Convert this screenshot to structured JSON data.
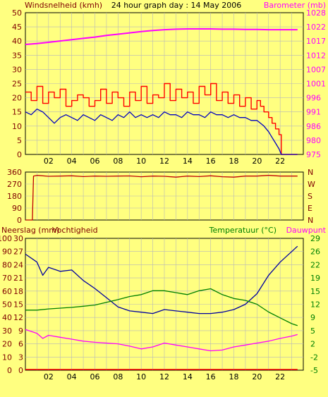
{
  "header": {
    "left_label": "Windsnelheid (kmh)",
    "center_title": "24 hour graph day : 14 May 2006",
    "right_label": "Barometer (mb)"
  },
  "colors": {
    "background": "#ffff80",
    "plot_background": "#ffff80",
    "grid": "#b8b8b8",
    "axis": "#000000",
    "gust": "#ff0000",
    "wind": "#0000c0",
    "barometer": "#ff00ff",
    "direction": "#c00000",
    "humidity": "#0000a0",
    "temperature": "#008000",
    "dewpoint": "#ff00ff",
    "rain": "#ff0000",
    "left_label_color": "#800000",
    "right_label_color": "#ff00ff",
    "temp_label_color": "#008000"
  },
  "chart_data": [
    {
      "id": "wind-pressure",
      "type": "line",
      "left_axis_label": "Windsnelheid (kmh)",
      "right_axis_label": "Barometer (mb)",
      "x_ticks": [
        "02",
        "04",
        "06",
        "08",
        "10",
        "12",
        "14",
        "16",
        "18",
        "20",
        "22"
      ],
      "xlim": [
        0,
        24
      ],
      "left_ylim": [
        0,
        50
      ],
      "left_ticks": [
        "0",
        "5",
        "10",
        "15",
        "20",
        "25",
        "30",
        "35",
        "40",
        "45",
        "50"
      ],
      "right_ylim": [
        975,
        1029.1
      ],
      "right_ticks": [
        "975",
        "980",
        "986",
        "991",
        "996",
        "1001",
        "1007",
        "1012",
        "1017",
        "1022",
        "1028"
      ],
      "grid": true,
      "series": [
        {
          "key": "gust",
          "axis": "left",
          "step": true,
          "x": [
            0,
            0.5,
            1,
            1.5,
            2,
            2.5,
            3,
            3.5,
            4,
            4.5,
            5,
            5.5,
            6,
            6.5,
            7,
            7.5,
            8,
            8.5,
            9,
            9.5,
            10,
            10.5,
            11,
            11.5,
            12,
            12.5,
            13,
            13.5,
            14,
            14.5,
            15,
            15.5,
            16,
            16.5,
            17,
            17.5,
            18,
            18.5,
            19,
            19.5,
            20,
            20.3,
            20.6,
            21,
            21.3,
            21.6,
            21.9,
            22.1,
            22.4,
            23,
            23.5
          ],
          "y": [
            22,
            19,
            24,
            18,
            22,
            20,
            23,
            17,
            19,
            21,
            20,
            17,
            19,
            23,
            18,
            22,
            20,
            17,
            22,
            19,
            24,
            18,
            21,
            20,
            25,
            19,
            23,
            20,
            22,
            18,
            24,
            21,
            25,
            19,
            22,
            18,
            21,
            17,
            20,
            16,
            19,
            17,
            15,
            13,
            11,
            9,
            7,
            0,
            0,
            0,
            0
          ]
        },
        {
          "key": "wind",
          "axis": "left",
          "step": false,
          "x": [
            0,
            0.5,
            1,
            1.5,
            2,
            2.5,
            3,
            3.5,
            4,
            4.5,
            5,
            5.5,
            6,
            6.5,
            7,
            7.5,
            8,
            8.5,
            9,
            9.5,
            10,
            10.5,
            11,
            11.5,
            12,
            12.5,
            13,
            13.5,
            14,
            14.5,
            15,
            15.5,
            16,
            16.5,
            17,
            17.5,
            18,
            18.5,
            19,
            19.5,
            20,
            20.3,
            20.6,
            21,
            21.3,
            21.6,
            21.9,
            22.1,
            22.4,
            23,
            23.5
          ],
          "y": [
            15,
            14,
            16,
            15,
            13,
            11,
            13,
            14,
            13,
            12,
            14,
            13,
            12,
            14,
            13,
            12,
            14,
            13,
            15,
            13,
            14,
            13,
            14,
            13,
            15,
            14,
            14,
            13,
            15,
            14,
            14,
            13,
            15,
            14,
            14,
            13,
            14,
            13,
            13,
            12,
            12,
            11,
            10,
            8,
            6,
            4,
            2,
            0,
            0,
            0,
            0
          ]
        },
        {
          "key": "barometer",
          "axis": "right",
          "step": false,
          "x": [
            0,
            1,
            2,
            3,
            4,
            5,
            6,
            7,
            8,
            9,
            10,
            11,
            12,
            13,
            14,
            15,
            16,
            17,
            18,
            19,
            20,
            21,
            22,
            23,
            23.5
          ],
          "y": [
            1017.0,
            1017.3,
            1017.8,
            1018.3,
            1018.8,
            1019.3,
            1019.8,
            1020.4,
            1020.9,
            1021.4,
            1021.9,
            1022.3,
            1022.6,
            1022.8,
            1022.9,
            1022.9,
            1022.9,
            1022.8,
            1022.8,
            1022.7,
            1022.7,
            1022.6,
            1022.6,
            1022.6,
            1022.6
          ]
        }
      ]
    },
    {
      "id": "wind-direction",
      "type": "line",
      "xlim": [
        0,
        24
      ],
      "ylim": [
        0,
        360
      ],
      "left_ticks": [
        "0",
        "90",
        "180",
        "270",
        "360"
      ],
      "right_ticks": [
        "N",
        "E",
        "S",
        "W",
        "N"
      ],
      "grid": true,
      "series": [
        {
          "key": "direction",
          "axis": "left",
          "step": false,
          "x": [
            0,
            0.6,
            0.7,
            1,
            2,
            3,
            4,
            5,
            6,
            7,
            8,
            9,
            10,
            11,
            12,
            13,
            14,
            15,
            16,
            17,
            18,
            19,
            20,
            21,
            22,
            23,
            23.5
          ],
          "y": [
            0,
            0,
            330,
            335,
            328,
            330,
            332,
            326,
            330,
            328,
            330,
            331,
            325,
            330,
            328,
            322,
            330,
            326,
            332,
            325,
            322,
            330,
            330,
            335,
            330,
            330,
            330
          ]
        }
      ]
    },
    {
      "id": "humidity-temperature",
      "type": "line",
      "left_axis_label": "Neerslag (mm)",
      "left_axis_label2": "Vochtigheid",
      "right_axis_label": "Temperatuur (°C)",
      "right_axis_label2": "Dauwpunt",
      "xlim": [
        0,
        24
      ],
      "humidity_ylim": [
        0,
        100
      ],
      "humidity_ticks": [
        "0",
        "10",
        "20",
        "30",
        "40",
        "50",
        "60",
        "70",
        "80",
        "90",
        "100"
      ],
      "rain_ylim": [
        0,
        30
      ],
      "rain_ticks": [
        "0",
        "3",
        "6",
        "9",
        "12",
        "15",
        "18",
        "21",
        "24",
        "27",
        "30"
      ],
      "temp_ylim": [
        -5,
        29
      ],
      "temp_ticks": [
        "-5",
        "-2",
        "2",
        "5",
        "9",
        "12",
        "15",
        "19",
        "22",
        "26",
        "29"
      ],
      "grid": true,
      "series": [
        {
          "key": "humidity",
          "axis": "humidity",
          "step": false,
          "x": [
            0,
            1,
            1.5,
            2,
            3,
            4,
            5,
            6,
            7,
            8,
            9,
            10,
            11,
            12,
            13,
            14,
            15,
            16,
            17,
            18,
            19,
            20,
            21,
            22,
            23,
            23.5
          ],
          "y": [
            88,
            82,
            72,
            78,
            75,
            76,
            68,
            62,
            55,
            48,
            45,
            44,
            43,
            46,
            45,
            44,
            43,
            43,
            44,
            46,
            50,
            58,
            72,
            82,
            90,
            94
          ]
        },
        {
          "key": "temperature",
          "axis": "temp",
          "step": false,
          "x": [
            0,
            1,
            2,
            3,
            4,
            5,
            6,
            7,
            8,
            9,
            10,
            11,
            12,
            13,
            14,
            15,
            16,
            17,
            18,
            19,
            20,
            21,
            22,
            23,
            23.5
          ],
          "y": [
            10.5,
            10.5,
            10.8,
            11.0,
            11.2,
            11.5,
            11.8,
            12.5,
            13.2,
            14.0,
            14.5,
            15.5,
            15.5,
            15.0,
            14.5,
            15.5,
            16.0,
            14.5,
            13.5,
            13.0,
            12.0,
            10.0,
            8.5,
            7.0,
            6.5
          ]
        },
        {
          "key": "dewpoint",
          "axis": "temp",
          "step": false,
          "x": [
            0,
            0.5,
            1,
            1.5,
            2,
            3,
            4,
            5,
            6,
            7,
            8,
            9,
            10,
            11,
            12,
            13,
            14,
            15,
            16,
            17,
            18,
            19,
            20,
            21,
            22,
            23,
            23.5
          ],
          "y": [
            5.5,
            5.0,
            4.5,
            3.2,
            4.0,
            3.5,
            3.0,
            2.5,
            2.2,
            2.0,
            1.8,
            1.2,
            0.5,
            1.0,
            2.0,
            1.5,
            1.0,
            0.5,
            0.0,
            0.2,
            1.0,
            1.5,
            2.0,
            2.5,
            3.2,
            3.8,
            4.2
          ]
        },
        {
          "key": "rain",
          "axis": "rain",
          "step": false,
          "x": [
            0,
            23.5
          ],
          "y": [
            0,
            0
          ]
        }
      ]
    }
  ]
}
